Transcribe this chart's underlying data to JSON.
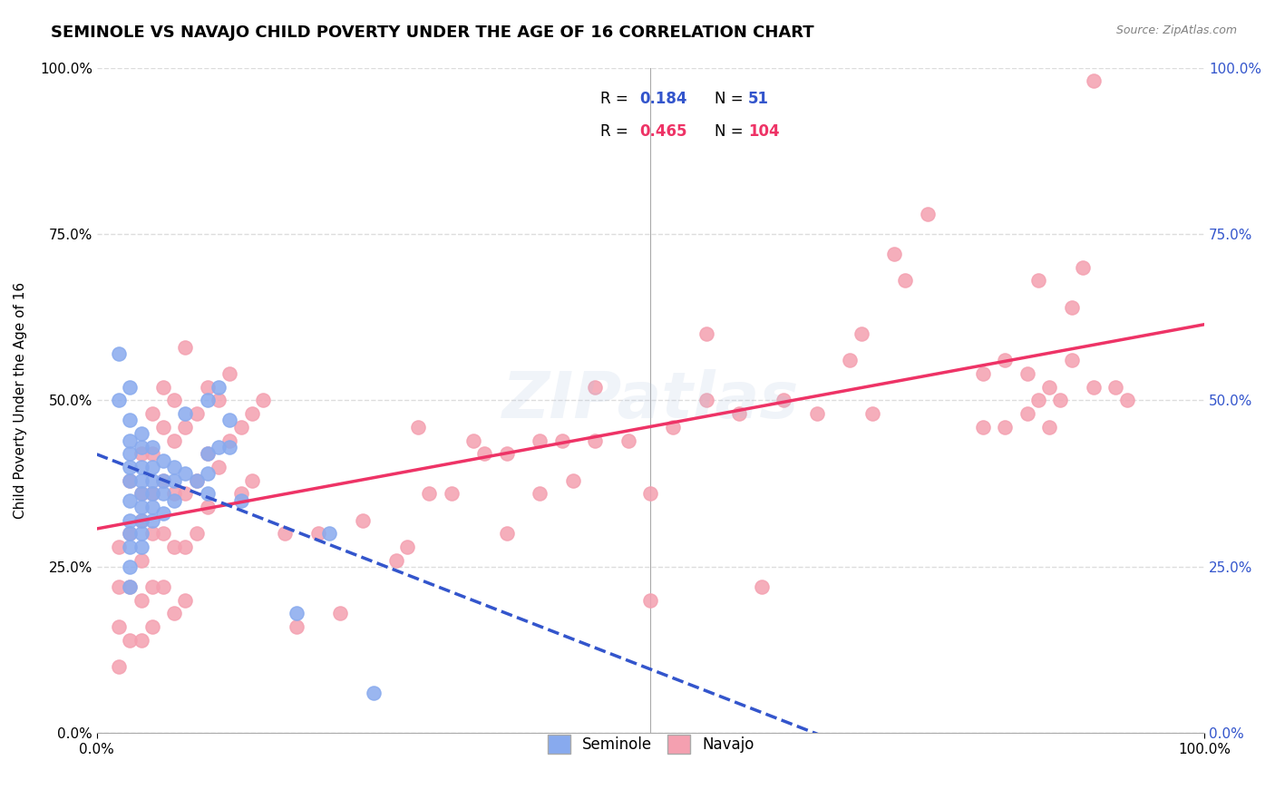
{
  "title": "SEMINOLE VS NAVAJO CHILD POVERTY UNDER THE AGE OF 16 CORRELATION CHART",
  "source": "Source: ZipAtlas.com",
  "xlabel": "",
  "ylabel": "Child Poverty Under the Age of 16",
  "xlim": [
    0,
    1
  ],
  "ylim": [
    0,
    1
  ],
  "xtick_labels": [
    "0.0%",
    "100.0%"
  ],
  "ytick_labels": [
    "0.0%",
    "25.0%",
    "50.0%",
    "75.0%",
    "100.0%"
  ],
  "ytick_positions": [
    0.0,
    0.25,
    0.5,
    0.75,
    1.0
  ],
  "watermark": "ZIPatlas",
  "seminole_R": 0.184,
  "seminole_N": 51,
  "navajo_R": 0.465,
  "navajo_N": 104,
  "seminole_color": "#88AAEE",
  "navajo_color": "#F4A0B0",
  "seminole_line_color": "#3355CC",
  "navajo_line_color": "#EE3366",
  "seminole_scatter": [
    [
      0.02,
      0.57
    ],
    [
      0.02,
      0.5
    ],
    [
      0.03,
      0.52
    ],
    [
      0.03,
      0.47
    ],
    [
      0.03,
      0.44
    ],
    [
      0.03,
      0.42
    ],
    [
      0.03,
      0.4
    ],
    [
      0.03,
      0.38
    ],
    [
      0.03,
      0.35
    ],
    [
      0.03,
      0.32
    ],
    [
      0.03,
      0.3
    ],
    [
      0.03,
      0.28
    ],
    [
      0.03,
      0.25
    ],
    [
      0.03,
      0.22
    ],
    [
      0.04,
      0.45
    ],
    [
      0.04,
      0.43
    ],
    [
      0.04,
      0.4
    ],
    [
      0.04,
      0.38
    ],
    [
      0.04,
      0.36
    ],
    [
      0.04,
      0.34
    ],
    [
      0.04,
      0.32
    ],
    [
      0.04,
      0.3
    ],
    [
      0.04,
      0.28
    ],
    [
      0.05,
      0.43
    ],
    [
      0.05,
      0.4
    ],
    [
      0.05,
      0.38
    ],
    [
      0.05,
      0.36
    ],
    [
      0.05,
      0.34
    ],
    [
      0.05,
      0.32
    ],
    [
      0.06,
      0.41
    ],
    [
      0.06,
      0.38
    ],
    [
      0.06,
      0.36
    ],
    [
      0.06,
      0.33
    ],
    [
      0.07,
      0.4
    ],
    [
      0.07,
      0.38
    ],
    [
      0.07,
      0.35
    ],
    [
      0.08,
      0.39
    ],
    [
      0.08,
      0.48
    ],
    [
      0.09,
      0.38
    ],
    [
      0.1,
      0.5
    ],
    [
      0.1,
      0.42
    ],
    [
      0.1,
      0.39
    ],
    [
      0.1,
      0.36
    ],
    [
      0.11,
      0.52
    ],
    [
      0.11,
      0.43
    ],
    [
      0.12,
      0.47
    ],
    [
      0.12,
      0.43
    ],
    [
      0.13,
      0.35
    ],
    [
      0.18,
      0.18
    ],
    [
      0.21,
      0.3
    ],
    [
      0.25,
      0.06
    ]
  ],
  "navajo_scatter": [
    [
      0.02,
      0.1
    ],
    [
      0.02,
      0.16
    ],
    [
      0.02,
      0.22
    ],
    [
      0.02,
      0.28
    ],
    [
      0.03,
      0.38
    ],
    [
      0.03,
      0.3
    ],
    [
      0.03,
      0.22
    ],
    [
      0.03,
      0.14
    ],
    [
      0.04,
      0.42
    ],
    [
      0.04,
      0.36
    ],
    [
      0.04,
      0.32
    ],
    [
      0.04,
      0.26
    ],
    [
      0.04,
      0.2
    ],
    [
      0.04,
      0.14
    ],
    [
      0.05,
      0.48
    ],
    [
      0.05,
      0.42
    ],
    [
      0.05,
      0.36
    ],
    [
      0.05,
      0.3
    ],
    [
      0.05,
      0.22
    ],
    [
      0.05,
      0.16
    ],
    [
      0.06,
      0.52
    ],
    [
      0.06,
      0.46
    ],
    [
      0.06,
      0.38
    ],
    [
      0.06,
      0.3
    ],
    [
      0.06,
      0.22
    ],
    [
      0.07,
      0.5
    ],
    [
      0.07,
      0.44
    ],
    [
      0.07,
      0.36
    ],
    [
      0.07,
      0.28
    ],
    [
      0.07,
      0.18
    ],
    [
      0.08,
      0.58
    ],
    [
      0.08,
      0.46
    ],
    [
      0.08,
      0.36
    ],
    [
      0.08,
      0.28
    ],
    [
      0.08,
      0.2
    ],
    [
      0.09,
      0.48
    ],
    [
      0.09,
      0.38
    ],
    [
      0.09,
      0.3
    ],
    [
      0.1,
      0.52
    ],
    [
      0.1,
      0.42
    ],
    [
      0.1,
      0.34
    ],
    [
      0.11,
      0.5
    ],
    [
      0.11,
      0.4
    ],
    [
      0.12,
      0.54
    ],
    [
      0.12,
      0.44
    ],
    [
      0.13,
      0.46
    ],
    [
      0.13,
      0.36
    ],
    [
      0.14,
      0.48
    ],
    [
      0.14,
      0.38
    ],
    [
      0.15,
      0.5
    ],
    [
      0.17,
      0.3
    ],
    [
      0.18,
      0.16
    ],
    [
      0.2,
      0.3
    ],
    [
      0.22,
      0.18
    ],
    [
      0.24,
      0.32
    ],
    [
      0.27,
      0.26
    ],
    [
      0.28,
      0.28
    ],
    [
      0.29,
      0.46
    ],
    [
      0.3,
      0.36
    ],
    [
      0.32,
      0.36
    ],
    [
      0.34,
      0.44
    ],
    [
      0.35,
      0.42
    ],
    [
      0.37,
      0.42
    ],
    [
      0.37,
      0.3
    ],
    [
      0.4,
      0.44
    ],
    [
      0.4,
      0.36
    ],
    [
      0.42,
      0.44
    ],
    [
      0.43,
      0.38
    ],
    [
      0.45,
      0.44
    ],
    [
      0.45,
      0.52
    ],
    [
      0.48,
      0.44
    ],
    [
      0.5,
      0.36
    ],
    [
      0.5,
      0.2
    ],
    [
      0.52,
      0.46
    ],
    [
      0.55,
      0.5
    ],
    [
      0.55,
      0.6
    ],
    [
      0.58,
      0.48
    ],
    [
      0.6,
      0.22
    ],
    [
      0.62,
      0.5
    ],
    [
      0.65,
      0.48
    ],
    [
      0.68,
      0.56
    ],
    [
      0.69,
      0.6
    ],
    [
      0.7,
      0.48
    ],
    [
      0.72,
      0.72
    ],
    [
      0.73,
      0.68
    ],
    [
      0.75,
      0.78
    ],
    [
      0.8,
      0.54
    ],
    [
      0.8,
      0.46
    ],
    [
      0.82,
      0.56
    ],
    [
      0.82,
      0.46
    ],
    [
      0.84,
      0.54
    ],
    [
      0.84,
      0.48
    ],
    [
      0.85,
      0.5
    ],
    [
      0.85,
      0.68
    ],
    [
      0.86,
      0.52
    ],
    [
      0.86,
      0.46
    ],
    [
      0.87,
      0.5
    ],
    [
      0.88,
      0.56
    ],
    [
      0.88,
      0.64
    ],
    [
      0.89,
      0.7
    ],
    [
      0.9,
      0.52
    ],
    [
      0.9,
      0.98
    ],
    [
      0.92,
      0.52
    ],
    [
      0.93,
      0.5
    ]
  ],
  "background_color": "#ffffff",
  "grid_color": "#dddddd",
  "title_fontsize": 13,
  "label_fontsize": 11,
  "tick_fontsize": 11,
  "legend_fontsize": 12
}
